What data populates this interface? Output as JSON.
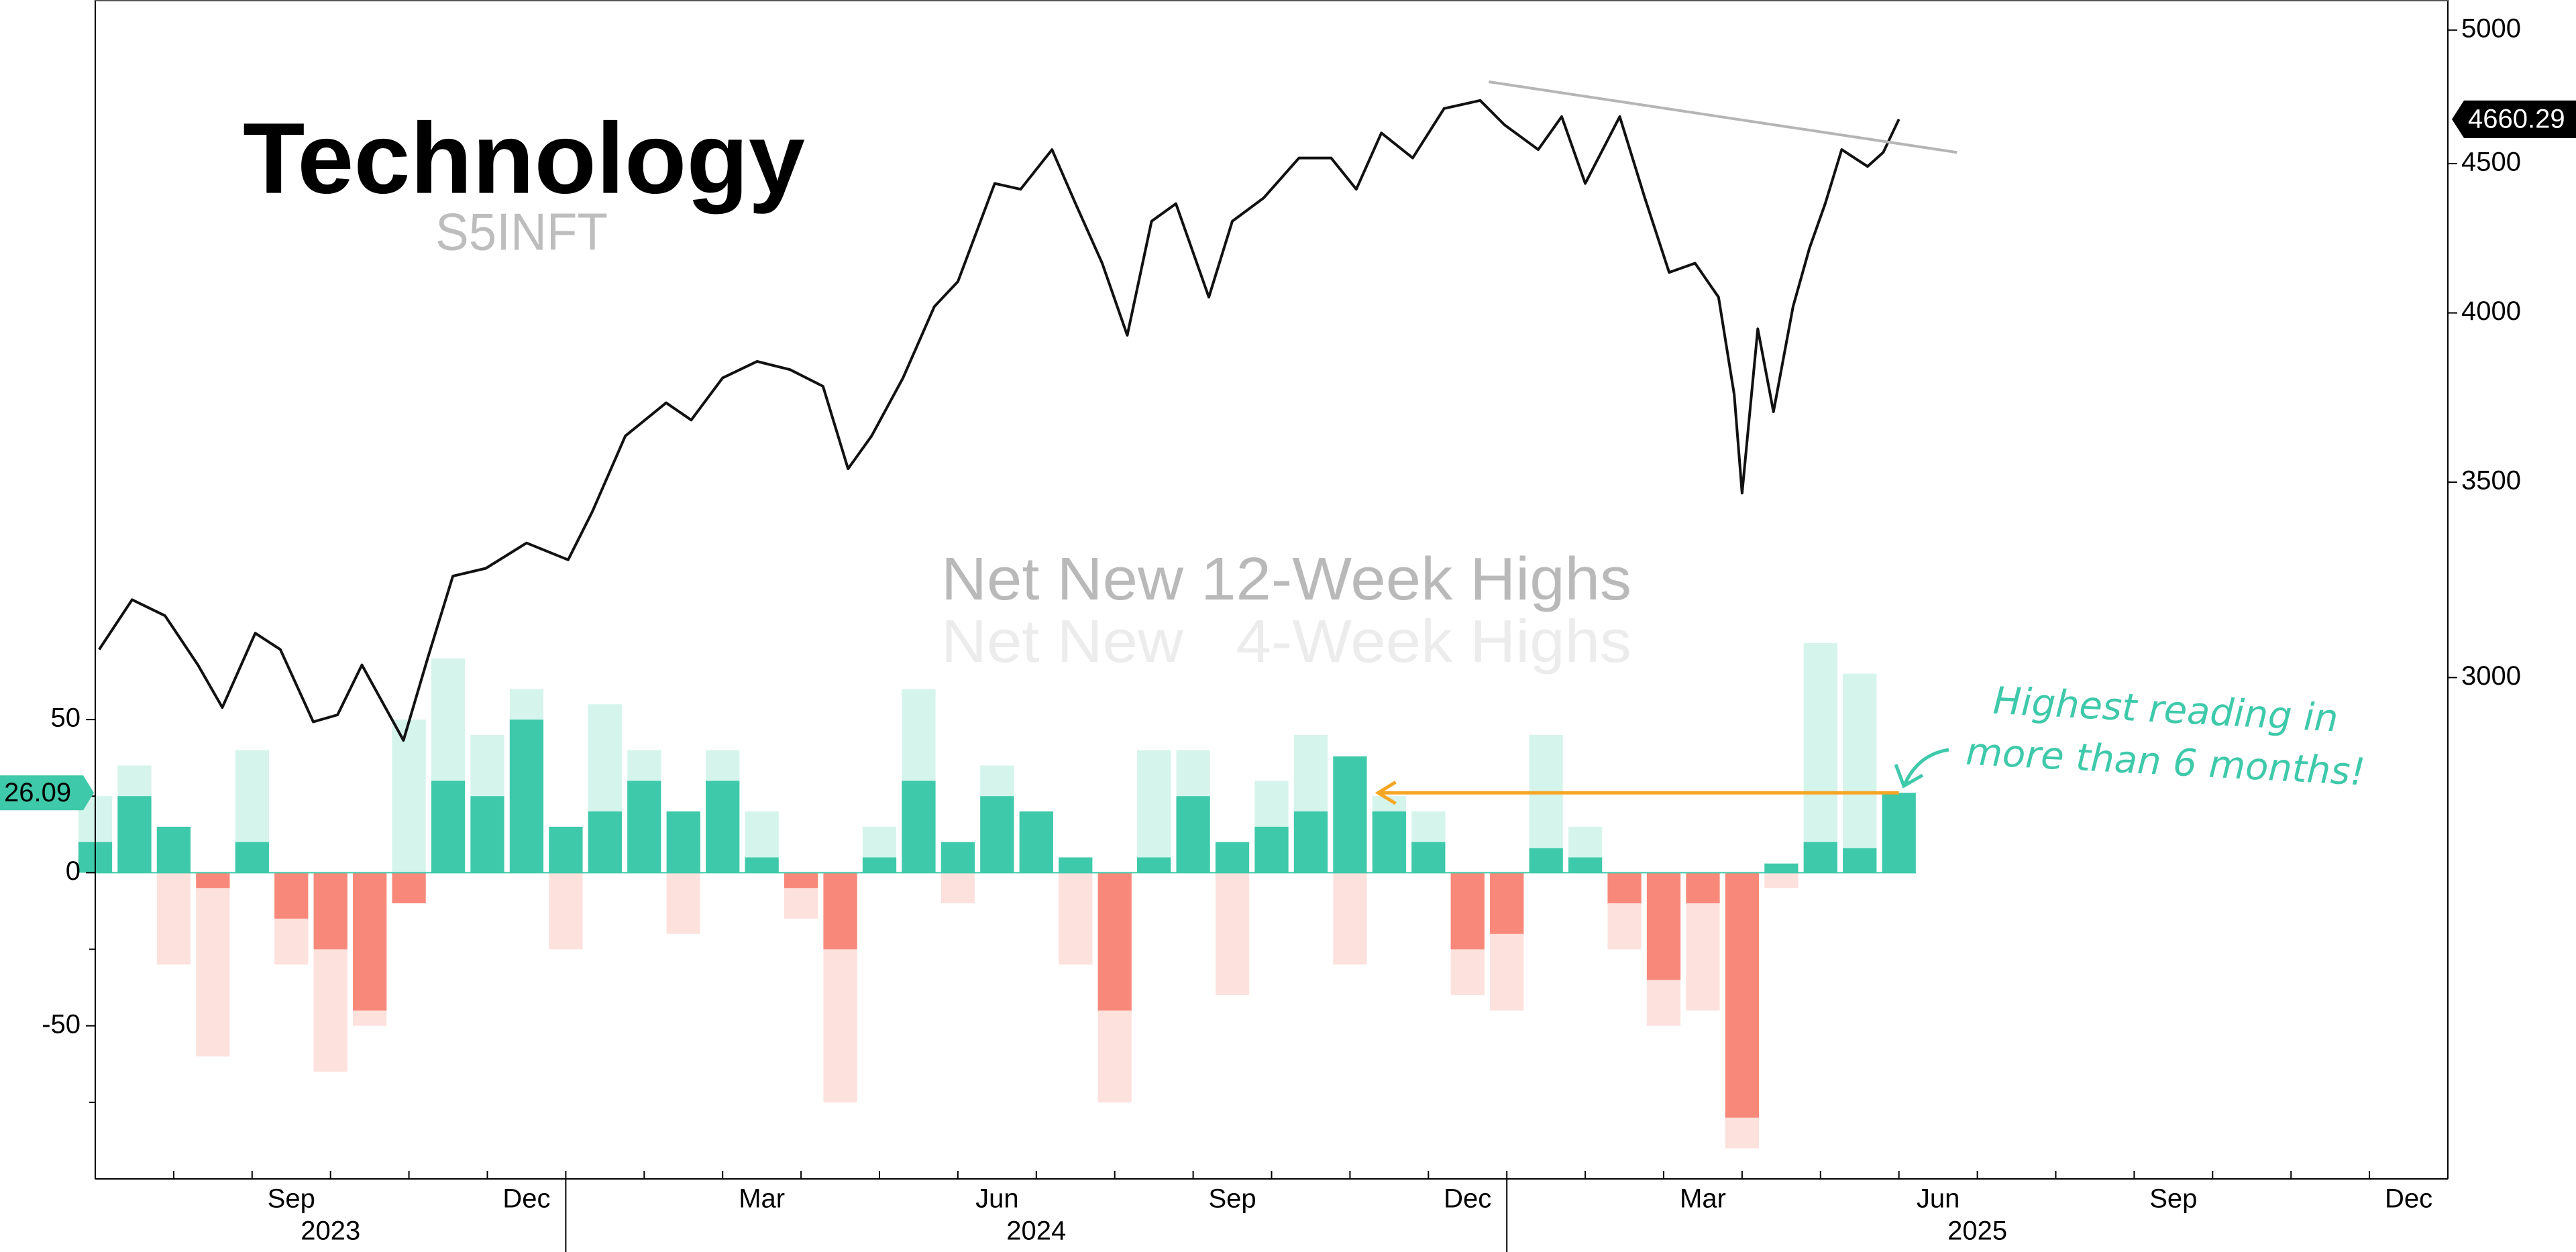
{
  "chart_data": {
    "type": "bar",
    "title": "Technology",
    "subtitle": "S5INFT",
    "xlim": [
      0,
      30
    ],
    "xticks": [
      {
        "value": 2.5,
        "label": "Sep"
      },
      {
        "value": 5.5,
        "label": "Dec"
      },
      {
        "value": 8.5,
        "label": "Mar"
      },
      {
        "value": 11.5,
        "label": "Jun"
      },
      {
        "value": 14.5,
        "label": "Sep"
      },
      {
        "value": 17.5,
        "label": "Dec"
      },
      {
        "value": 20.5,
        "label": "Mar"
      },
      {
        "value": 23.5,
        "label": "Jun"
      },
      {
        "value": 26.5,
        "label": "Sep"
      },
      {
        "value": 29.5,
        "label": "Dec"
      }
    ],
    "xminorticks": [
      1,
      2,
      3,
      4,
      5,
      6,
      7,
      8,
      9,
      10,
      11,
      12,
      13,
      14,
      15,
      16,
      17,
      18,
      19,
      20,
      21,
      22,
      23,
      24,
      25,
      26,
      27,
      28,
      29
    ],
    "years": [
      {
        "value": 3,
        "label": "2023"
      },
      {
        "value": 12,
        "label": "2024"
      },
      {
        "value": 24,
        "label": "2025"
      }
    ],
    "year_bounds": [
      6,
      18
    ],
    "ylim": [
      -100,
      285
    ],
    "yticks": [
      -50,
      0,
      50
    ],
    "yminorticks": [
      -75,
      -25,
      25
    ],
    "y2lim": [
      2020,
      5120
    ],
    "y2ticks": [
      3000,
      3500,
      4000,
      4500,
      5000
    ],
    "y2log": true,
    "x": [
      0,
      0.5,
      1,
      1.5,
      2,
      2.5,
      3,
      3.5,
      4,
      4.5,
      5,
      5.5,
      6,
      6.5,
      7,
      7.5,
      8,
      8.5,
      9,
      9.5,
      10,
      10.5,
      11,
      11.5,
      12,
      12.5,
      13,
      13.5,
      14,
      14.5,
      15,
      15.5,
      16,
      16.5,
      17,
      17.5,
      18,
      18.5,
      19,
      19.5,
      20,
      20.5,
      21,
      21.5,
      22,
      22.5,
      23
    ],
    "series": [
      {
        "name": "Net New 12-Week Highs",
        "color": "#3ec9aa",
        "negative_color": "#f8897a",
        "legend_color": "#b9b9b9",
        "values": [
          10,
          25,
          15,
          -5,
          10,
          -15,
          -25,
          -45,
          -10,
          30,
          25,
          50,
          15,
          20,
          30,
          20,
          30,
          5,
          -5,
          -25,
          5,
          30,
          10,
          25,
          20,
          5,
          -45,
          5,
          25,
          10,
          15,
          20,
          38,
          20,
          10,
          -25,
          -20,
          8,
          5,
          -10,
          -35,
          -10,
          -80,
          3,
          10,
          8,
          26.09
        ]
      },
      {
        "name": "Net New   4-Week Highs",
        "color": "#d5f4ec",
        "negative_color": "#fde1dd",
        "legend_color": "#ececec",
        "values": [
          25,
          35,
          -30,
          -60,
          40,
          -30,
          -65,
          -50,
          50,
          70,
          45,
          60,
          -25,
          55,
          40,
          -20,
          40,
          20,
          -15,
          -75,
          15,
          60,
          -10,
          35,
          15,
          -30,
          -75,
          40,
          40,
          -40,
          30,
          45,
          -30,
          25,
          20,
          -40,
          -45,
          45,
          15,
          -25,
          -50,
          -45,
          -90,
          -5,
          75,
          65,
          20
        ]
      },
      {
        "type": "line",
        "axis": "y2",
        "color": "#111111",
        "x": [
          0.05,
          0.47,
          0.89,
          1.31,
          1.62,
          2.04,
          2.36,
          2.78,
          3.09,
          3.4,
          3.93,
          4.24,
          4.56,
          4.98,
          5.5,
          6.03,
          6.34,
          6.76,
          7.28,
          7.6,
          8.0,
          8.44,
          8.86,
          9.28,
          9.6,
          9.9,
          10.3,
          10.7,
          11.0,
          11.47,
          11.8,
          12.2,
          12.5,
          12.84,
          13.16,
          13.47,
          13.78,
          14.2,
          14.5,
          14.9,
          15.35,
          15.76,
          16.08,
          16.4,
          16.8,
          17.2,
          17.66,
          17.97,
          18.4,
          18.7,
          19.0,
          19.44,
          19.76,
          20.07,
          20.4,
          20.7,
          20.9,
          21.0,
          21.2,
          21.4,
          21.65,
          21.86,
          22.06,
          22.27,
          22.6,
          22.8,
          23.0
        ],
        "values": [
          3067,
          3190,
          3150,
          3030,
          2930,
          3107,
          3067,
          2897,
          2913,
          3030,
          2855,
          3047,
          3250,
          3270,
          3336,
          3292,
          3420,
          3630,
          3726,
          3676,
          3800,
          3850,
          3825,
          3775,
          3537,
          3630,
          3800,
          4020,
          4100,
          4430,
          4410,
          4550,
          4360,
          4160,
          3930,
          4300,
          4360,
          4050,
          4300,
          4380,
          4520,
          4520,
          4410,
          4610,
          4520,
          4700,
          4730,
          4640,
          4550,
          4670,
          4430,
          4670,
          4380,
          4130,
          4160,
          4050,
          3750,
          3470,
          3950,
          3700,
          4020,
          4210,
          4360,
          4550,
          4490,
          4540,
          4660.29
        ]
      }
    ],
    "trendline": {
      "x": [
        17.77,
        23.74
      ],
      "values": [
        4800,
        4540
      ],
      "color": "#b5b5b5"
    },
    "reference_arrow": {
      "x_start": 16.36,
      "color": "#f5a623"
    },
    "annotation": [
      "Highest reading in",
      "more than 6 months!"
    ],
    "annotation_color": "#3ec9aa"
  }
}
